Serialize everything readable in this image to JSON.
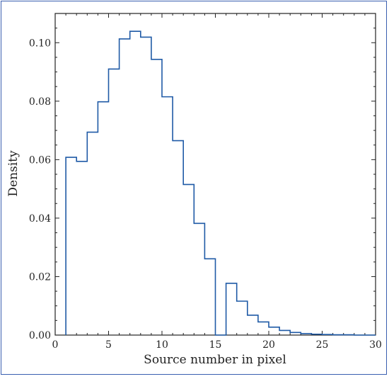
{
  "chart_data": {
    "type": "histogram",
    "title": "",
    "xlabel": "Source number in pixel",
    "ylabel": "Density",
    "xlim": [
      0,
      30
    ],
    "ylim": [
      0,
      0.11
    ],
    "grid": false,
    "x_ticks": [
      0,
      5,
      10,
      15,
      20,
      25,
      30
    ],
    "x_tick_labels": [
      "0",
      "5",
      "10",
      "15",
      "20",
      "25",
      "30"
    ],
    "y_ticks": [
      0.0,
      0.02,
      0.04,
      0.06,
      0.08,
      0.1
    ],
    "y_tick_labels": [
      "0.00",
      "0.02",
      "0.04",
      "0.06",
      "0.08",
      "0.10"
    ],
    "bin_edges": [
      1,
      2,
      3,
      4,
      5,
      6,
      7,
      8,
      9,
      10,
      11,
      12,
      13,
      14,
      15,
      16,
      17,
      18,
      19,
      20,
      21,
      22,
      23,
      24,
      25,
      26,
      27,
      28,
      29,
      30
    ],
    "values": [
      0.0608,
      0.0594,
      0.0694,
      0.0798,
      0.091,
      0.1013,
      0.1039,
      0.1019,
      0.0943,
      0.0815,
      0.0665,
      0.0515,
      0.0382,
      0.0261,
      0.0,
      0.0177,
      0.0116,
      0.0068,
      0.0045,
      0.0027,
      0.0016,
      0.0009,
      0.0005,
      0.0003,
      0.0002,
      0.0001,
      0.0001,
      0.0,
      0.0
    ],
    "line_color": "#1f5aa6"
  }
}
